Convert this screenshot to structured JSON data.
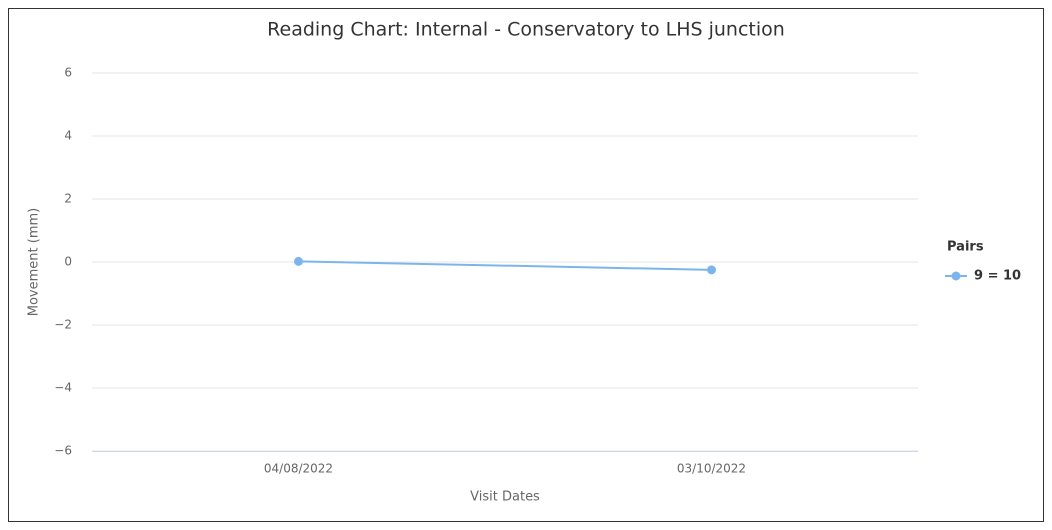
{
  "chart_data": {
    "type": "line",
    "title": "Reading Chart: Internal - Conservatory to LHS junction",
    "x_label": "Visit Dates",
    "y_label": "Movement (mm)",
    "legend_title": "Pairs",
    "legend": "right",
    "grid": true,
    "categories": [
      "04/08/2022",
      "03/10/2022"
    ],
    "series": [
      {
        "name": "9 = 10",
        "color": "#7cb5ec",
        "values": [
          0.02,
          -0.25
        ]
      }
    ],
    "ylim": [
      -6,
      6
    ],
    "yticks": [
      {
        "value": -6,
        "label": "−6"
      },
      {
        "value": -4,
        "label": "−4"
      },
      {
        "value": -2,
        "label": "−2"
      },
      0,
      2,
      4,
      6
    ]
  }
}
